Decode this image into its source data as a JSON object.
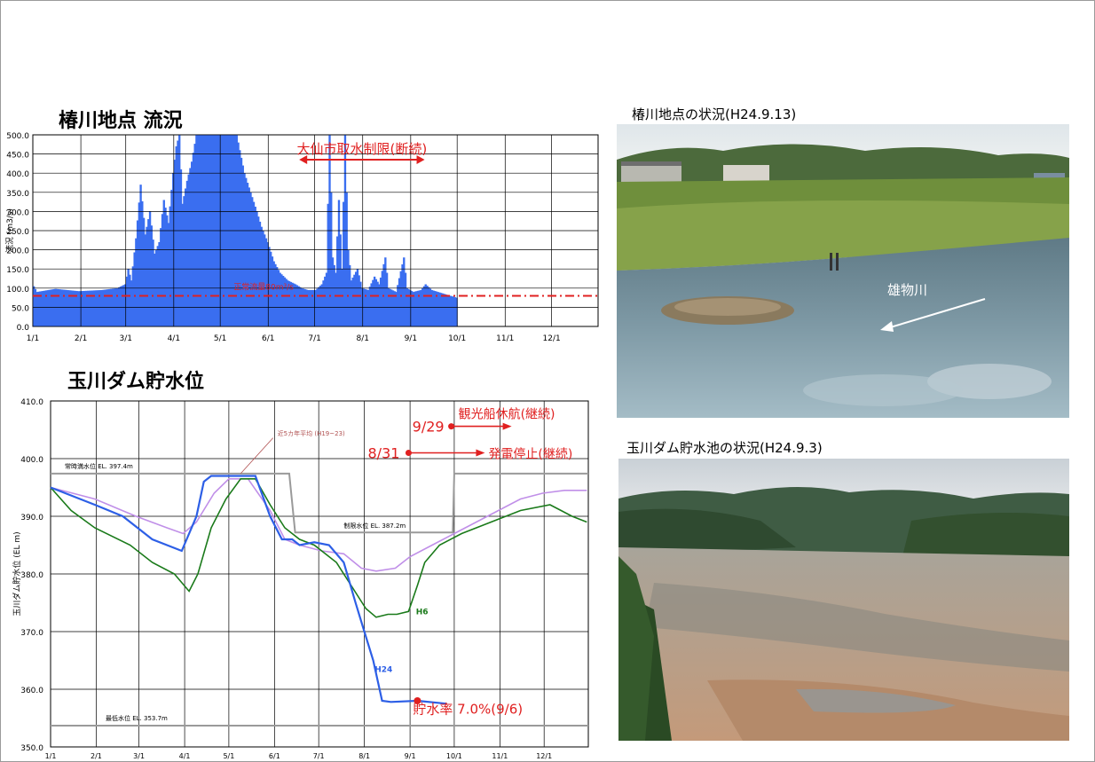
{
  "chart_data": [
    {
      "type": "bar",
      "title": "椿川地点 流況",
      "ylabel": "流況 (m3/s)",
      "xlabel": "",
      "x_ticks": [
        "1/1",
        "2/1",
        "3/1",
        "4/1",
        "5/1",
        "6/1",
        "7/1",
        "8/1",
        "9/1",
        "10/1",
        "11/1",
        "12/1"
      ],
      "y_ticks": [
        "0.0",
        "50.0",
        "100.0",
        "150.0",
        "200.0",
        "250.0",
        "300.0",
        "350.0",
        "400.0",
        "450.0",
        "500.0"
      ],
      "ylim": [
        0,
        500
      ],
      "grid": true,
      "series_color": "#3a6ef0",
      "daily_flow_breakpoints": [
        [
          1,
          105
        ],
        [
          3,
          90
        ],
        [
          15,
          98
        ],
        [
          30,
          92
        ],
        [
          45,
          95
        ],
        [
          55,
          100
        ],
        [
          60,
          110
        ],
        [
          62,
          150
        ],
        [
          64,
          120
        ],
        [
          67,
          230
        ],
        [
          70,
          370
        ],
        [
          73,
          240
        ],
        [
          76,
          300
        ],
        [
          79,
          190
        ],
        [
          82,
          220
        ],
        [
          85,
          330
        ],
        [
          88,
          270
        ],
        [
          91,
          400
        ],
        [
          93,
          470
        ],
        [
          95,
          500
        ],
        [
          97,
          320
        ],
        [
          100,
          380
        ],
        [
          103,
          430
        ],
        [
          106,
          500
        ],
        [
          108,
          500
        ],
        [
          115,
          500
        ],
        [
          125,
          500
        ],
        [
          132,
          500
        ],
        [
          137,
          400
        ],
        [
          141,
          350
        ],
        [
          145,
          300
        ],
        [
          148,
          260
        ],
        [
          152,
          220
        ],
        [
          156,
          170
        ],
        [
          160,
          140
        ],
        [
          165,
          120
        ],
        [
          170,
          110
        ],
        [
          174,
          100
        ],
        [
          178,
          95
        ],
        [
          183,
          95
        ],
        [
          187,
          110
        ],
        [
          190,
          140
        ],
        [
          192,
          500
        ],
        [
          193,
          350
        ],
        [
          194,
          180
        ],
        [
          196,
          140
        ],
        [
          198,
          330
        ],
        [
          200,
          150
        ],
        [
          202,
          500
        ],
        [
          204,
          200
        ],
        [
          206,
          120
        ],
        [
          210,
          150
        ],
        [
          213,
          100
        ],
        [
          217,
          95
        ],
        [
          221,
          130
        ],
        [
          224,
          110
        ],
        [
          228,
          180
        ],
        [
          230,
          100
        ],
        [
          235,
          90
        ],
        [
          240,
          180
        ],
        [
          242,
          100
        ],
        [
          246,
          90
        ],
        [
          251,
          95
        ],
        [
          254,
          110
        ],
        [
          258,
          95
        ],
        [
          262,
          90
        ],
        [
          266,
          85
        ],
        [
          270,
          80
        ],
        [
          274,
          75
        ]
      ],
      "reference_line": {
        "label": "正常流量80m³/s",
        "value": 80,
        "color": "#e02020"
      },
      "annotation": {
        "label": "大仙市取水制限(断続)",
        "color": "#e02020",
        "from": "6/21",
        "to": "9/10"
      }
    },
    {
      "type": "line",
      "title": "玉川ダム貯水位",
      "ylabel": "玉川ダム貯水位 (EL m)",
      "xlabel": "",
      "x_ticks": [
        "1/1",
        "2/1",
        "3/1",
        "4/1",
        "5/1",
        "6/1",
        "7/1",
        "8/1",
        "9/1",
        "10/1",
        "11/1",
        "12/1"
      ],
      "y_ticks": [
        "350.0",
        "360.0",
        "370.0",
        "380.0",
        "390.0",
        "400.0",
        "410.0"
      ],
      "ylim": [
        350,
        410
      ],
      "grid": true,
      "series": [
        {
          "name": "H24",
          "color": "#2d5fe6",
          "points": [
            [
              1,
              395
            ],
            [
              31,
              392
            ],
            [
              50,
              390
            ],
            [
              70,
              386
            ],
            [
              90,
              384
            ],
            [
              100,
              390
            ],
            [
              105,
              396
            ],
            [
              110,
              397
            ],
            [
              125,
              397
            ],
            [
              140,
              397
            ],
            [
              150,
              390
            ],
            [
              158,
              386
            ],
            [
              165,
              386
            ],
            [
              170,
              385
            ],
            [
              180,
              385.5
            ],
            [
              190,
              385
            ],
            [
              200,
              382
            ],
            [
              208,
              375
            ],
            [
              214,
              370
            ],
            [
              220,
              365
            ],
            [
              226,
              358
            ],
            [
              232,
              357.8
            ],
            [
              250,
              358
            ],
            [
              270,
              357.5
            ]
          ]
        },
        {
          "name": "H6",
          "color": "#1a7a1a",
          "points": [
            [
              1,
              395
            ],
            [
              15,
              391
            ],
            [
              31,
              388
            ],
            [
              55,
              385
            ],
            [
              70,
              382
            ],
            [
              85,
              380
            ],
            [
              95,
              377
            ],
            [
              101,
              380
            ],
            [
              110,
              388
            ],
            [
              120,
              393
            ],
            [
              130,
              396.5
            ],
            [
              140,
              396.5
            ],
            [
              150,
              392
            ],
            [
              160,
              388
            ],
            [
              170,
              386
            ],
            [
              180,
              385
            ],
            [
              195,
              382
            ],
            [
              205,
              378
            ],
            [
              215,
              374
            ],
            [
              222,
              372.5
            ],
            [
              230,
              373
            ],
            [
              236,
              373
            ],
            [
              244,
              373.5
            ],
            [
              250,
              378
            ],
            [
              255,
              382
            ],
            [
              265,
              385
            ],
            [
              280,
              387
            ],
            [
              300,
              389
            ],
            [
              320,
              391
            ],
            [
              340,
              392
            ],
            [
              355,
              390
            ],
            [
              365,
              389
            ]
          ]
        },
        {
          "name": "近5カ年平均 (H19~23)",
          "color": "#c08fe8",
          "points": [
            [
              1,
              395
            ],
            [
              31,
              393
            ],
            [
              59,
              390
            ],
            [
              80,
              388
            ],
            [
              91,
              387
            ],
            [
              100,
              389
            ],
            [
              112,
              394
            ],
            [
              122,
              396.5
            ],
            [
              135,
              396.5
            ],
            [
              150,
              391
            ],
            [
              160,
              386
            ],
            [
              170,
              385
            ],
            [
              185,
              384
            ],
            [
              200,
              383.5
            ],
            [
              212,
              381
            ],
            [
              222,
              380.5
            ],
            [
              235,
              381
            ],
            [
              245,
              383
            ],
            [
              260,
              385
            ],
            [
              275,
              387
            ],
            [
              290,
              389
            ],
            [
              305,
              391
            ],
            [
              320,
              393
            ],
            [
              335,
              394
            ],
            [
              350,
              394.5
            ],
            [
              365,
              394.5
            ]
          ]
        }
      ],
      "reference_lines": [
        {
          "label": "常時満水位 EL. 397.4m",
          "value": 397.4
        },
        {
          "label": "制限水位 EL. 387.2m",
          "value": 387.2
        },
        {
          "label": "最低水位 EL. 353.7m",
          "value": 353.7
        }
      ],
      "annotations": [
        {
          "date": "9/29",
          "label": "観光船休航(継続)",
          "color": "#e02020"
        },
        {
          "date": "8/31",
          "label": "発電停止(継続)",
          "color": "#e02020"
        },
        {
          "label": "貯水率 7.0%(9/6)",
          "color": "#e02020"
        }
      ]
    }
  ],
  "photos": [
    {
      "caption": "椿川地点の状況(H24.9.13)",
      "river_label": "雄物川"
    },
    {
      "caption": "玉川ダム貯水池の状況(H24.9.3)"
    }
  ]
}
